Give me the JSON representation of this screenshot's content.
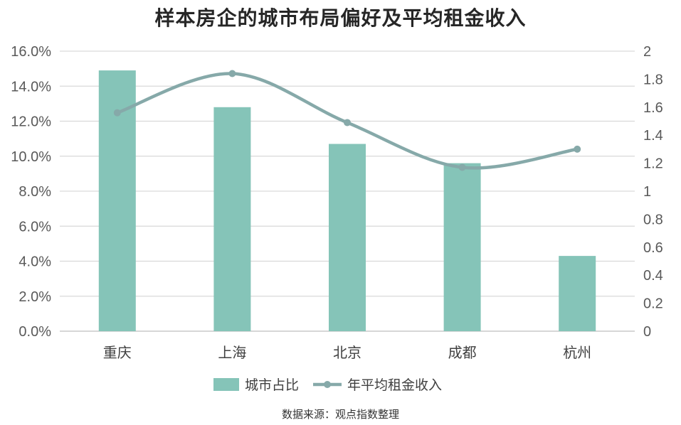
{
  "title": "样本房企的城市布局偏好及平均租金收入",
  "source": "数据来源：观点指数整理",
  "colors": {
    "bar": "#85c4b8",
    "line": "#86a9a9",
    "grid": "#d9d9d9",
    "axis": "#bfbfbf"
  },
  "chart_data": {
    "type": "bar",
    "categories": [
      "重庆",
      "上海",
      "北京",
      "成都",
      "杭州"
    ],
    "series": [
      {
        "name": "城市占比",
        "type": "bar",
        "axis": "left",
        "values": [
          0.149,
          0.128,
          0.107,
          0.096,
          0.043
        ]
      },
      {
        "name": "年平均租金收入",
        "type": "line",
        "axis": "right",
        "smooth": true,
        "values": [
          1.56,
          1.84,
          1.49,
          1.17,
          1.3
        ]
      }
    ],
    "y_left": {
      "min": 0,
      "max": 0.16,
      "ticks": [
        "0.0%",
        "2.0%",
        "4.0%",
        "6.0%",
        "8.0%",
        "10.0%",
        "12.0%",
        "14.0%",
        "16.0%"
      ]
    },
    "y_right": {
      "min": 0,
      "max": 2,
      "ticks": [
        "0",
        "0.2",
        "0.4",
        "0.6",
        "0.8",
        "1",
        "1.2",
        "1.4",
        "1.6",
        "1.8",
        "2"
      ]
    },
    "grid": true,
    "legend": "bottom"
  }
}
